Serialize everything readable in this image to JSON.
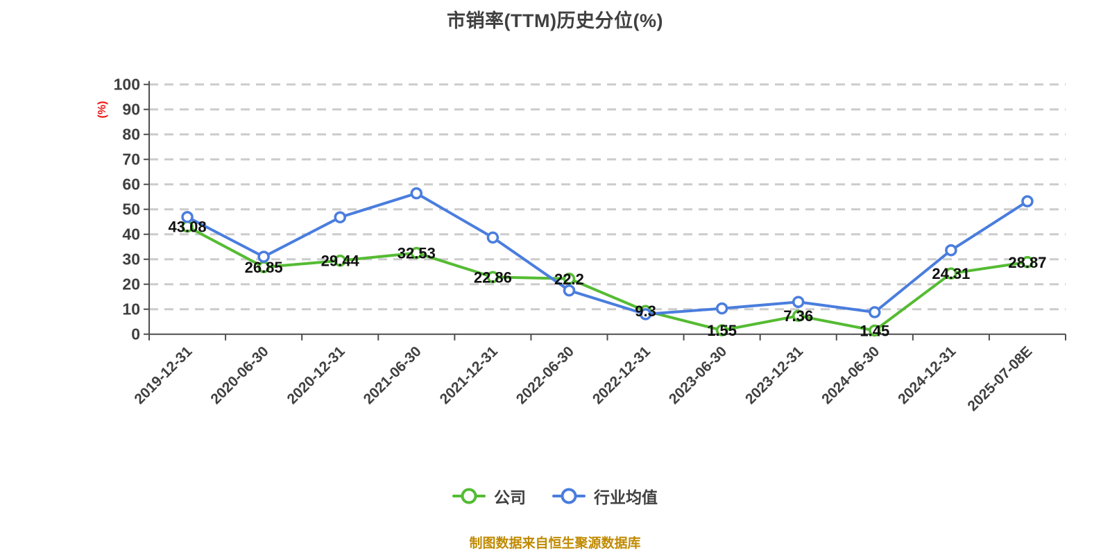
{
  "title": "市销率(TTM)历史分位(%)",
  "footer": "制图数据来自恒生聚源数据库",
  "legend": [
    {
      "label": "公司",
      "color": "#55bb33"
    },
    {
      "label": "行业均值",
      "color": "#4a7dde"
    }
  ],
  "colors": {
    "title": "#404040",
    "axis_line": "#4d4d4d",
    "axis_label": "#404040",
    "grid": "#cccccc",
    "data_label": "#111111",
    "ylabel": "#ee1111",
    "footer": "#c08a00",
    "company": "#55bb33",
    "industry": "#4a7dde"
  },
  "chart_data": {
    "type": "line",
    "title": "市销率(TTM)历史分位(%)",
    "xlabel": "",
    "ylabel": "(%)",
    "ylim": [
      0,
      100
    ],
    "y_tick_step": 10,
    "grid": true,
    "grid_style": "dashed",
    "legend_position": "bottom",
    "categories": [
      "2019-12-31",
      "2020-06-30",
      "2020-12-31",
      "2021-06-30",
      "2021-12-31",
      "2022-06-30",
      "2022-12-31",
      "2023-06-30",
      "2023-12-31",
      "2024-06-30",
      "2024-12-31",
      "2025-07-08E"
    ],
    "series": [
      {
        "name": "公司",
        "color": "#55bb33",
        "values": [
          43.08,
          26.85,
          29.44,
          32.53,
          22.86,
          22.2,
          9.3,
          1.55,
          7.36,
          1.45,
          24.31,
          28.87
        ],
        "point_labels": [
          "43.08",
          "26.85",
          "29.44",
          "32.53",
          "22.86",
          "22.2",
          "9.3",
          "1.55",
          "7.36",
          "1.45",
          "24.31",
          "28.87"
        ],
        "show_labels": true
      },
      {
        "name": "行业均值",
        "color": "#4a7dde",
        "values": [
          46.9,
          31.0,
          46.8,
          56.4,
          38.7,
          17.5,
          8.0,
          10.3,
          12.9,
          8.8,
          33.6,
          53.2
        ],
        "point_labels": [],
        "show_labels": false
      }
    ]
  }
}
